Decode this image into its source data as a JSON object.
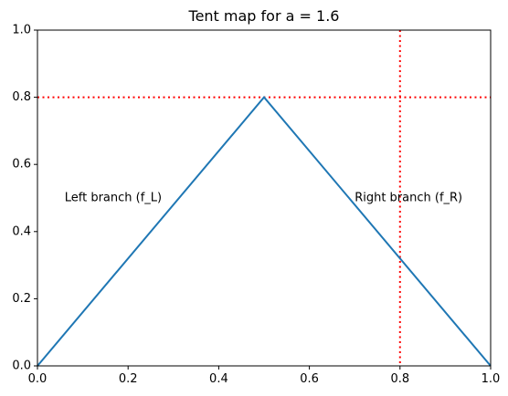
{
  "chart_data": {
    "type": "line",
    "title": "Tent map for a = 1.6",
    "xlabel": "",
    "ylabel": "",
    "xlim": [
      0,
      1
    ],
    "ylim": [
      0,
      1
    ],
    "x_ticks": [
      0.0,
      0.2,
      0.4,
      0.6,
      0.8,
      1.0
    ],
    "y_ticks": [
      0.0,
      0.2,
      0.4,
      0.6,
      0.8,
      1.0
    ],
    "x_tick_labels": [
      "0.0",
      "0.2",
      "0.4",
      "0.6",
      "0.8",
      "1.0"
    ],
    "y_tick_labels": [
      "0.0",
      "0.2",
      "0.4",
      "0.6",
      "0.8",
      "1.0"
    ],
    "grid": false,
    "series": [
      {
        "x": [
          0.0,
          0.5,
          1.0
        ],
        "y": [
          0.0,
          0.8,
          0.0
        ],
        "color": "#1f77b4"
      }
    ],
    "reference_lines": [
      {
        "orientation": "horizontal",
        "value": 0.8,
        "color": "#ff0000",
        "style": "dotted"
      },
      {
        "orientation": "vertical",
        "value": 0.8,
        "color": "#ff0000",
        "style": "dotted"
      }
    ],
    "annotations": [
      {
        "text": "Left branch (f_L)",
        "x": 0.06,
        "y": 0.5
      },
      {
        "text": "Right branch (f_R)",
        "x": 0.7,
        "y": 0.5
      }
    ]
  }
}
